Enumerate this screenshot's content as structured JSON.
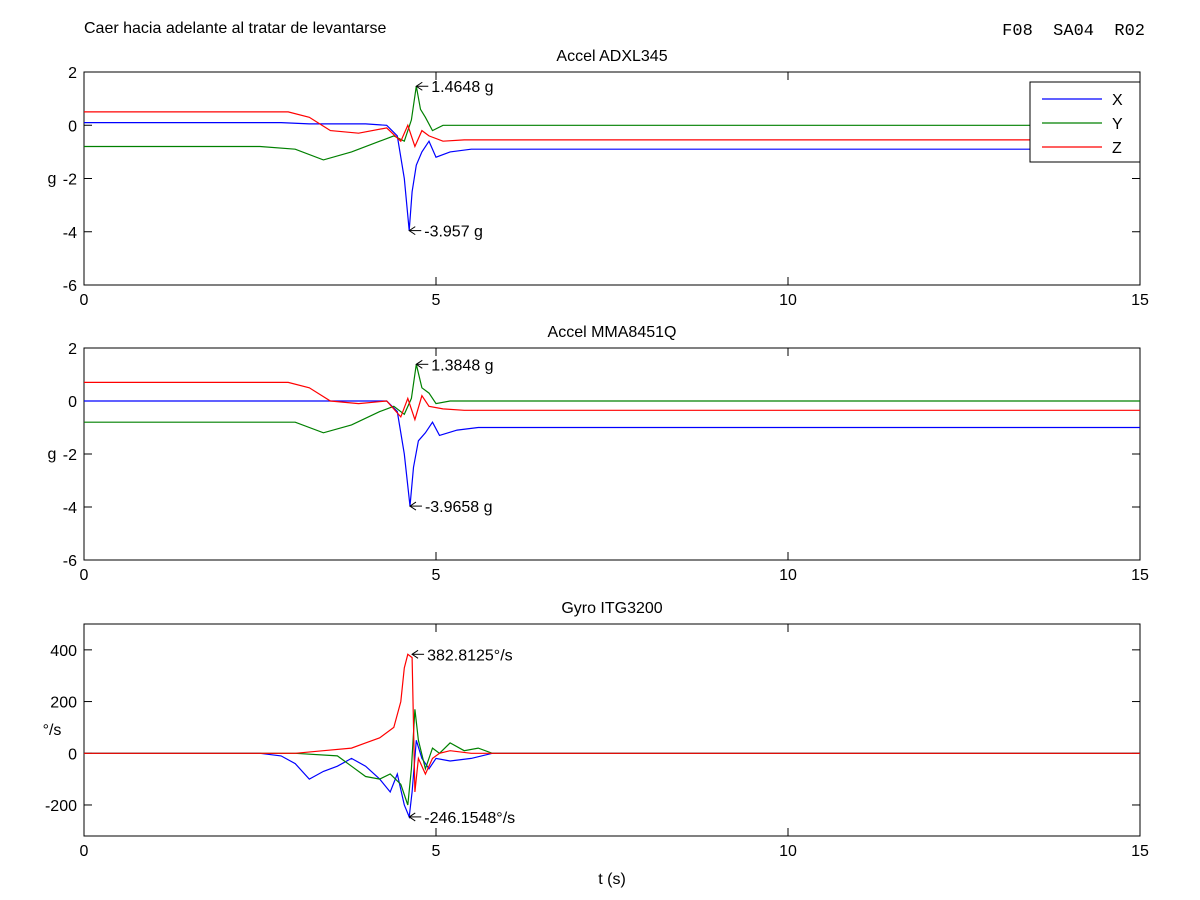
{
  "header": {
    "left_title": "Caer hacia adelante al tratar de levantarse",
    "right_code": "F08  SA04  R02"
  },
  "legend": {
    "entries": [
      {
        "name": "X",
        "color": "#0000ff"
      },
      {
        "name": "Y",
        "color": "#008000"
      },
      {
        "name": "Z",
        "color": "#ff0000"
      }
    ]
  },
  "chart_data": [
    {
      "type": "line",
      "title": "Accel ADXL345",
      "xlabel": "",
      "ylabel": "g",
      "xlim": [
        0,
        15
      ],
      "ylim": [
        -6,
        2
      ],
      "xticks": [
        0,
        5,
        10,
        15
      ],
      "yticks": [
        -6,
        -4,
        -2,
        0,
        2
      ],
      "legend_position": "top-right",
      "grid": false,
      "series": [
        {
          "name": "X",
          "color": "#0000ff",
          "x": [
            0,
            2.8,
            3.2,
            3.6,
            4.0,
            4.3,
            4.45,
            4.55,
            4.62,
            4.66,
            4.72,
            4.8,
            4.9,
            5.0,
            5.2,
            5.5,
            6.0,
            8,
            10,
            12,
            15
          ],
          "y": [
            0.1,
            0.1,
            0.05,
            0.05,
            0.05,
            0.0,
            -0.4,
            -2.0,
            -3.957,
            -2.5,
            -1.5,
            -1.0,
            -0.6,
            -1.2,
            -1.0,
            -0.9,
            -0.9,
            -0.9,
            -0.9,
            -0.9,
            -0.9
          ]
        },
        {
          "name": "Y",
          "color": "#008000",
          "x": [
            0,
            2.5,
            3.0,
            3.4,
            3.8,
            4.2,
            4.4,
            4.55,
            4.65,
            4.72,
            4.78,
            4.85,
            4.95,
            5.1,
            5.4,
            6.0,
            8,
            10,
            12,
            15
          ],
          "y": [
            -0.8,
            -0.8,
            -0.9,
            -1.3,
            -1.0,
            -0.6,
            -0.4,
            -0.6,
            0.2,
            1.4648,
            0.6,
            0.3,
            -0.2,
            0.0,
            0.0,
            0.0,
            0.0,
            0.0,
            0.0,
            0.0
          ]
        },
        {
          "name": "Z",
          "color": "#ff0000",
          "x": [
            0,
            2.9,
            3.2,
            3.5,
            3.9,
            4.3,
            4.5,
            4.6,
            4.7,
            4.8,
            4.9,
            5.1,
            5.4,
            6.0,
            8,
            10,
            12,
            15
          ],
          "y": [
            0.5,
            0.5,
            0.3,
            -0.2,
            -0.3,
            -0.1,
            -0.6,
            0.0,
            -0.8,
            -0.2,
            -0.4,
            -0.6,
            -0.55,
            -0.55,
            -0.55,
            -0.55,
            -0.55,
            -0.55
          ]
        }
      ],
      "annotations": [
        {
          "text": "1.4648 g",
          "x": 4.72,
          "y": 1.4648
        },
        {
          "text": "-3.957 g",
          "x": 4.62,
          "y": -3.957
        }
      ]
    },
    {
      "type": "line",
      "title": "Accel MMA8451Q",
      "xlabel": "",
      "ylabel": "g",
      "xlim": [
        0,
        15
      ],
      "ylim": [
        -6,
        2
      ],
      "xticks": [
        0,
        5,
        10,
        15
      ],
      "yticks": [
        -6,
        -4,
        -2,
        0,
        2
      ],
      "grid": false,
      "series": [
        {
          "name": "X",
          "color": "#0000ff",
          "x": [
            0,
            2.8,
            3.2,
            3.6,
            4.0,
            4.3,
            4.45,
            4.55,
            4.63,
            4.68,
            4.75,
            4.85,
            4.95,
            5.05,
            5.3,
            5.6,
            6.0,
            8,
            10,
            12,
            15
          ],
          "y": [
            0.0,
            0.0,
            0.0,
            0.0,
            0.0,
            0.0,
            -0.4,
            -2.0,
            -3.9658,
            -2.5,
            -1.5,
            -1.2,
            -0.8,
            -1.3,
            -1.1,
            -1.0,
            -1.0,
            -1.0,
            -1.0,
            -1.0,
            -1.0
          ]
        },
        {
          "name": "Y",
          "color": "#008000",
          "x": [
            0,
            2.5,
            3.0,
            3.4,
            3.8,
            4.2,
            4.4,
            4.55,
            4.65,
            4.72,
            4.8,
            4.9,
            5.0,
            5.2,
            5.6,
            6.0,
            8,
            10,
            12,
            15
          ],
          "y": [
            -0.8,
            -0.8,
            -0.8,
            -1.2,
            -0.9,
            -0.4,
            -0.2,
            -0.5,
            0.1,
            1.3848,
            0.5,
            0.3,
            -0.1,
            0.0,
            0.0,
            0.0,
            0.0,
            0.0,
            0.0,
            0.0
          ]
        },
        {
          "name": "Z",
          "color": "#ff0000",
          "x": [
            0,
            2.9,
            3.2,
            3.5,
            3.9,
            4.3,
            4.5,
            4.6,
            4.7,
            4.8,
            4.9,
            5.1,
            5.4,
            6.0,
            8,
            10,
            12,
            15
          ],
          "y": [
            0.7,
            0.7,
            0.5,
            0.0,
            -0.1,
            0.0,
            -0.6,
            0.1,
            -0.7,
            0.2,
            -0.2,
            -0.3,
            -0.35,
            -0.35,
            -0.35,
            -0.35,
            -0.35,
            -0.35
          ]
        }
      ],
      "annotations": [
        {
          "text": "1.3848 g",
          "x": 4.72,
          "y": 1.3848
        },
        {
          "text": "-3.9658 g",
          "x": 4.63,
          "y": -3.9658
        }
      ]
    },
    {
      "type": "line",
      "title": "Gyro ITG3200",
      "xlabel": "t (s)",
      "ylabel": "°/s",
      "xlim": [
        0,
        15
      ],
      "ylim": [
        -320,
        500
      ],
      "xticks": [
        0,
        5,
        10,
        15
      ],
      "yticks": [
        -200,
        0,
        200,
        400
      ],
      "grid": false,
      "series": [
        {
          "name": "X",
          "color": "#0000ff",
          "x": [
            0,
            2.5,
            2.8,
            3.0,
            3.2,
            3.4,
            3.6,
            3.8,
            4.0,
            4.2,
            4.35,
            4.45,
            4.55,
            4.62,
            4.66,
            4.72,
            4.8,
            4.9,
            5.0,
            5.2,
            5.5,
            5.8,
            6.0,
            10,
            15
          ],
          "y": [
            0,
            0,
            -10,
            -40,
            -100,
            -70,
            -50,
            -20,
            -50,
            -100,
            -150,
            -80,
            -200,
            -246.1548,
            -150,
            50,
            -20,
            -60,
            -20,
            -30,
            -20,
            0,
            0,
            0,
            0
          ]
        },
        {
          "name": "Y",
          "color": "#008000",
          "x": [
            0,
            3.0,
            3.6,
            3.8,
            4.0,
            4.2,
            4.35,
            4.5,
            4.6,
            4.65,
            4.7,
            4.75,
            4.85,
            4.95,
            5.05,
            5.2,
            5.4,
            5.6,
            5.8,
            6.0,
            15
          ],
          "y": [
            0,
            0,
            -10,
            -50,
            -90,
            -100,
            -80,
            -120,
            -200,
            -60,
            170,
            50,
            -60,
            20,
            0,
            40,
            10,
            20,
            0,
            0,
            0
          ]
        },
        {
          "name": "Z",
          "color": "#ff0000",
          "x": [
            0,
            3.0,
            3.4,
            3.8,
            4.0,
            4.2,
            4.4,
            4.5,
            4.55,
            4.6,
            4.66,
            4.7,
            4.75,
            4.85,
            4.95,
            5.05,
            5.2,
            5.5,
            6.0,
            15
          ],
          "y": [
            0,
            0,
            10,
            20,
            40,
            60,
            100,
            200,
            330,
            382.8125,
            370,
            -150,
            -20,
            -80,
            -20,
            0,
            10,
            0,
            0,
            0
          ]
        }
      ],
      "annotations": [
        {
          "text": "382.8125°/s",
          "x": 4.66,
          "y": 382.8125
        },
        {
          "text": "-246.1548°/s",
          "x": 4.62,
          "y": -246.1548
        }
      ]
    }
  ]
}
